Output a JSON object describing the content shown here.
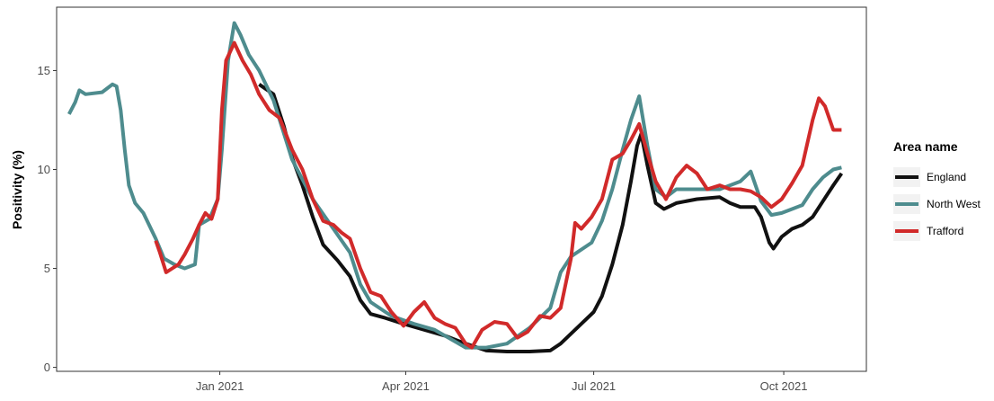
{
  "chart_data": {
    "type": "line",
    "title": "",
    "xlabel": "",
    "ylabel": "Positivity (%)",
    "x_ticks": [
      "2021-01-01",
      "2021-04-01",
      "2021-07-01",
      "2021-10-01"
    ],
    "x_tick_labels": [
      "Jan 2021",
      "Apr 2021",
      "Jul 2021",
      "Oct 2021"
    ],
    "y_ticks": [
      0,
      5,
      10,
      15
    ],
    "xlim": [
      "2020-10-14",
      "2021-11-10"
    ],
    "ylim": [
      -0.2,
      18.2
    ],
    "grid": false,
    "legend": {
      "title": "Area name",
      "placement": "right"
    },
    "series": [
      {
        "name": "England",
        "color": "#111111",
        "points": [
          [
            "2021-01-20",
            14.3
          ],
          [
            "2021-01-27",
            13.8
          ],
          [
            "2021-02-01",
            12.2
          ],
          [
            "2021-02-05",
            10.6
          ],
          [
            "2021-02-10",
            9.2
          ],
          [
            "2021-02-15",
            7.6
          ],
          [
            "2021-02-20",
            6.2
          ],
          [
            "2021-02-27",
            5.4
          ],
          [
            "2021-03-05",
            4.6
          ],
          [
            "2021-03-10",
            3.4
          ],
          [
            "2021-03-15",
            2.7
          ],
          [
            "2021-03-22",
            2.5
          ],
          [
            "2021-03-31",
            2.2
          ],
          [
            "2021-04-10",
            1.9
          ],
          [
            "2021-04-20",
            1.6
          ],
          [
            "2021-04-30",
            1.2
          ],
          [
            "2021-05-10",
            0.85
          ],
          [
            "2021-05-20",
            0.8
          ],
          [
            "2021-05-31",
            0.8
          ],
          [
            "2021-06-10",
            0.85
          ],
          [
            "2021-06-15",
            1.2
          ],
          [
            "2021-06-20",
            1.7
          ],
          [
            "2021-06-25",
            2.2
          ],
          [
            "2021-07-01",
            2.8
          ],
          [
            "2021-07-05",
            3.6
          ],
          [
            "2021-07-10",
            5.2
          ],
          [
            "2021-07-15",
            7.2
          ],
          [
            "2021-07-19",
            9.4
          ],
          [
            "2021-07-22",
            11.2
          ],
          [
            "2021-07-24",
            11.8
          ],
          [
            "2021-07-27",
            10.2
          ],
          [
            "2021-07-31",
            8.3
          ],
          [
            "2021-08-04",
            8.0
          ],
          [
            "2021-08-10",
            8.3
          ],
          [
            "2021-08-20",
            8.5
          ],
          [
            "2021-08-31",
            8.6
          ],
          [
            "2021-09-05",
            8.3
          ],
          [
            "2021-09-10",
            8.1
          ],
          [
            "2021-09-17",
            8.1
          ],
          [
            "2021-09-20",
            7.6
          ],
          [
            "2021-09-24",
            6.3
          ],
          [
            "2021-09-26",
            6.0
          ],
          [
            "2021-09-30",
            6.6
          ],
          [
            "2021-10-05",
            7.0
          ],
          [
            "2021-10-10",
            7.2
          ],
          [
            "2021-10-15",
            7.6
          ],
          [
            "2021-10-20",
            8.4
          ],
          [
            "2021-10-25",
            9.2
          ],
          [
            "2021-10-29",
            9.8
          ]
        ]
      },
      {
        "name": "North West",
        "color": "#4e8c8e",
        "points": [
          [
            "2020-10-20",
            12.8
          ],
          [
            "2020-10-23",
            13.4
          ],
          [
            "2020-10-25",
            14.0
          ],
          [
            "2020-10-28",
            13.8
          ],
          [
            "2020-11-05",
            13.9
          ],
          [
            "2020-11-10",
            14.3
          ],
          [
            "2020-11-12",
            14.2
          ],
          [
            "2020-11-14",
            13.0
          ],
          [
            "2020-11-16",
            11.0
          ],
          [
            "2020-11-18",
            9.2
          ],
          [
            "2020-11-21",
            8.3
          ],
          [
            "2020-11-25",
            7.8
          ],
          [
            "2020-12-01",
            6.5
          ],
          [
            "2020-12-05",
            5.5
          ],
          [
            "2020-12-10",
            5.2
          ],
          [
            "2020-12-15",
            5.0
          ],
          [
            "2020-12-20",
            5.2
          ],
          [
            "2020-12-22",
            7.2
          ],
          [
            "2020-12-27",
            7.5
          ],
          [
            "2020-12-31",
            8.5
          ],
          [
            "2021-01-02",
            11.0
          ],
          [
            "2021-01-05",
            15.5
          ],
          [
            "2021-01-08",
            17.4
          ],
          [
            "2021-01-11",
            16.8
          ],
          [
            "2021-01-15",
            15.8
          ],
          [
            "2021-01-20",
            15.0
          ],
          [
            "2021-01-27",
            13.5
          ],
          [
            "2021-02-05",
            10.5
          ],
          [
            "2021-02-15",
            8.5
          ],
          [
            "2021-02-25",
            7.0
          ],
          [
            "2021-03-05",
            5.8
          ],
          [
            "2021-03-10",
            4.2
          ],
          [
            "2021-03-15",
            3.3
          ],
          [
            "2021-03-25",
            2.6
          ],
          [
            "2021-04-05",
            2.2
          ],
          [
            "2021-04-15",
            1.9
          ],
          [
            "2021-04-25",
            1.3
          ],
          [
            "2021-04-30",
            1.0
          ],
          [
            "2021-05-10",
            1.0
          ],
          [
            "2021-05-20",
            1.2
          ],
          [
            "2021-05-31",
            2.0
          ],
          [
            "2021-06-10",
            3.0
          ],
          [
            "2021-06-15",
            4.8
          ],
          [
            "2021-06-20",
            5.6
          ],
          [
            "2021-06-30",
            6.3
          ],
          [
            "2021-07-05",
            7.4
          ],
          [
            "2021-07-10",
            9.0
          ],
          [
            "2021-07-15",
            11.0
          ],
          [
            "2021-07-19",
            12.5
          ],
          [
            "2021-07-23",
            13.7
          ],
          [
            "2021-07-27",
            11.2
          ],
          [
            "2021-07-31",
            9.0
          ],
          [
            "2021-08-05",
            8.6
          ],
          [
            "2021-08-10",
            9.0
          ],
          [
            "2021-08-20",
            9.0
          ],
          [
            "2021-08-31",
            9.0
          ],
          [
            "2021-09-05",
            9.2
          ],
          [
            "2021-09-10",
            9.4
          ],
          [
            "2021-09-15",
            9.9
          ],
          [
            "2021-09-20",
            8.4
          ],
          [
            "2021-09-25",
            7.7
          ],
          [
            "2021-09-30",
            7.8
          ],
          [
            "2021-10-05",
            8.0
          ],
          [
            "2021-10-10",
            8.2
          ],
          [
            "2021-10-15",
            9.0
          ],
          [
            "2021-10-20",
            9.6
          ],
          [
            "2021-10-25",
            10.0
          ],
          [
            "2021-10-29",
            10.1
          ]
        ]
      },
      {
        "name": "Trafford",
        "color": "#d12a2a",
        "points": [
          [
            "2020-12-01",
            6.4
          ],
          [
            "2020-12-03",
            5.8
          ],
          [
            "2020-12-06",
            4.8
          ],
          [
            "2020-12-09",
            5.0
          ],
          [
            "2020-12-12",
            5.2
          ],
          [
            "2020-12-15",
            5.7
          ],
          [
            "2020-12-19",
            6.5
          ],
          [
            "2020-12-22",
            7.2
          ],
          [
            "2020-12-25",
            7.8
          ],
          [
            "2020-12-28",
            7.5
          ],
          [
            "2020-12-31",
            8.5
          ],
          [
            "2021-01-02",
            13.0
          ],
          [
            "2021-01-04",
            15.5
          ],
          [
            "2021-01-08",
            16.4
          ],
          [
            "2021-01-12",
            15.5
          ],
          [
            "2021-01-16",
            14.8
          ],
          [
            "2021-01-20",
            13.8
          ],
          [
            "2021-01-25",
            13.0
          ],
          [
            "2021-01-30",
            12.6
          ],
          [
            "2021-02-05",
            11.0
          ],
          [
            "2021-02-10",
            10.0
          ],
          [
            "2021-02-15",
            8.5
          ],
          [
            "2021-02-20",
            7.4
          ],
          [
            "2021-02-25",
            7.2
          ],
          [
            "2021-03-01",
            6.8
          ],
          [
            "2021-03-05",
            6.5
          ],
          [
            "2021-03-10",
            5.0
          ],
          [
            "2021-03-15",
            3.8
          ],
          [
            "2021-03-20",
            3.6
          ],
          [
            "2021-03-25",
            2.8
          ],
          [
            "2021-03-31",
            2.1
          ],
          [
            "2021-04-05",
            2.8
          ],
          [
            "2021-04-10",
            3.3
          ],
          [
            "2021-04-15",
            2.5
          ],
          [
            "2021-04-20",
            2.2
          ],
          [
            "2021-04-25",
            2.0
          ],
          [
            "2021-04-30",
            1.2
          ],
          [
            "2021-05-03",
            1.0
          ],
          [
            "2021-05-08",
            1.9
          ],
          [
            "2021-05-14",
            2.3
          ],
          [
            "2021-05-20",
            2.2
          ],
          [
            "2021-05-25",
            1.5
          ],
          [
            "2021-05-30",
            1.8
          ],
          [
            "2021-06-05",
            2.6
          ],
          [
            "2021-06-10",
            2.5
          ],
          [
            "2021-06-15",
            3.0
          ],
          [
            "2021-06-20",
            5.5
          ],
          [
            "2021-06-22",
            7.3
          ],
          [
            "2021-06-25",
            7.0
          ],
          [
            "2021-06-30",
            7.6
          ],
          [
            "2021-07-05",
            8.5
          ],
          [
            "2021-07-10",
            10.5
          ],
          [
            "2021-07-15",
            10.8
          ],
          [
            "2021-07-19",
            11.5
          ],
          [
            "2021-07-23",
            12.3
          ],
          [
            "2021-07-27",
            10.8
          ],
          [
            "2021-07-31",
            9.4
          ],
          [
            "2021-08-05",
            8.5
          ],
          [
            "2021-08-10",
            9.6
          ],
          [
            "2021-08-15",
            10.2
          ],
          [
            "2021-08-20",
            9.8
          ],
          [
            "2021-08-25",
            9.0
          ],
          [
            "2021-08-31",
            9.2
          ],
          [
            "2021-09-05",
            9.0
          ],
          [
            "2021-09-10",
            9.0
          ],
          [
            "2021-09-15",
            8.9
          ],
          [
            "2021-09-20",
            8.6
          ],
          [
            "2021-09-25",
            8.1
          ],
          [
            "2021-09-30",
            8.5
          ],
          [
            "2021-10-05",
            9.3
          ],
          [
            "2021-10-10",
            10.2
          ],
          [
            "2021-10-15",
            12.5
          ],
          [
            "2021-10-18",
            13.6
          ],
          [
            "2021-10-21",
            13.2
          ],
          [
            "2021-10-25",
            12.0
          ],
          [
            "2021-10-29",
            12.0
          ]
        ]
      }
    ]
  }
}
